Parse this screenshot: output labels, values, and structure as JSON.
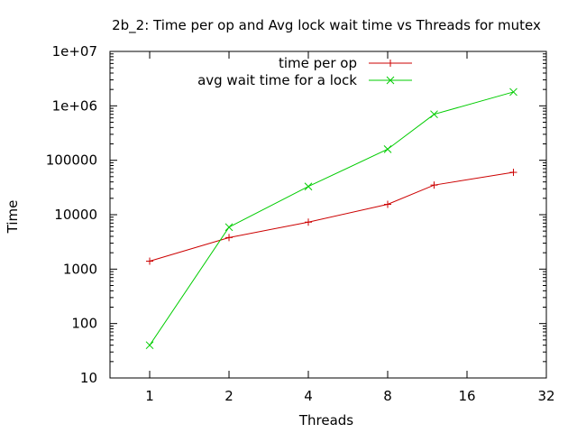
{
  "chart_data": {
    "type": "line",
    "title": "2b_2: Time per op and Avg lock wait time vs Threads for mutex",
    "xlabel": "Threads",
    "ylabel": "Time",
    "x_scale": "log2",
    "y_scale": "log10",
    "xlim": [
      0.707,
      32
    ],
    "ylim": [
      10,
      10000000
    ],
    "x_ticks": [
      {
        "value": 1,
        "label": "1"
      },
      {
        "value": 2,
        "label": "2"
      },
      {
        "value": 4,
        "label": "4"
      },
      {
        "value": 8,
        "label": "8"
      },
      {
        "value": 16,
        "label": "16"
      },
      {
        "value": 32,
        "label": "32"
      }
    ],
    "y_ticks": [
      {
        "value": 10,
        "label": "10"
      },
      {
        "value": 100,
        "label": "100"
      },
      {
        "value": 1000,
        "label": "1000"
      },
      {
        "value": 10000,
        "label": "10000"
      },
      {
        "value": 100000,
        "label": "100000"
      },
      {
        "value": 1000000,
        "label": "1e+06"
      },
      {
        "value": 10000000,
        "label": "1e+07"
      }
    ],
    "grid": false,
    "legend_position": "top-right",
    "series": [
      {
        "name": "time per op",
        "color": "#cc0000",
        "marker": "plus",
        "x": [
          1,
          2,
          4,
          8,
          12,
          24
        ],
        "y": [
          1400,
          3800,
          7300,
          15500,
          35000,
          60000
        ]
      },
      {
        "name": "avg wait time for a lock",
        "color": "#00cc00",
        "marker": "cross",
        "x": [
          1,
          2,
          4,
          8,
          12,
          24
        ],
        "y": [
          40,
          5900,
          33000,
          160000,
          700000,
          1800000
        ]
      }
    ]
  }
}
